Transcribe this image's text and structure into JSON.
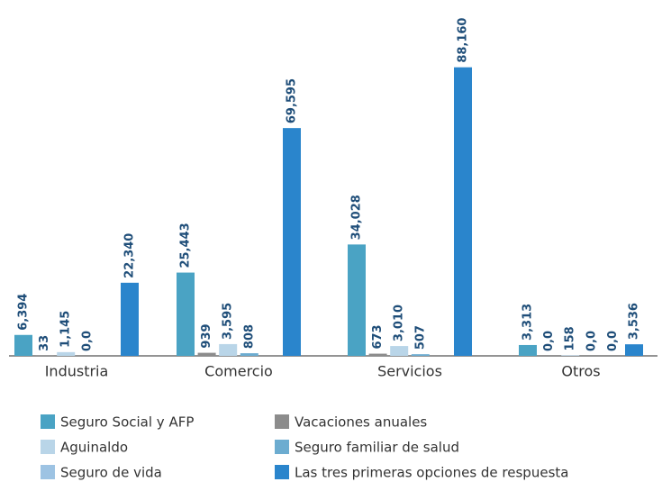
{
  "chart_data": {
    "type": "bar",
    "categories": [
      "Industria",
      "Comercio",
      "Servicios",
      "Otros"
    ],
    "series": [
      {
        "name": "Seguro Social y AFP",
        "color": "#4aa3c4",
        "values": [
          6394,
          25443,
          34028,
          3313
        ],
        "value_labels": [
          "6,394",
          "25,443",
          "34,028",
          "3,313"
        ]
      },
      {
        "name": "Vacaciones anuales",
        "color": "#8c8c8c",
        "values": [
          33,
          939,
          673,
          0
        ],
        "value_labels": [
          "33",
          "939",
          "673",
          "0,0"
        ]
      },
      {
        "name": "Aguinaldo",
        "color": "#b9d5e8",
        "values": [
          1145,
          3595,
          3010,
          158
        ],
        "value_labels": [
          "1,145",
          "3,595",
          "3,010",
          "158"
        ]
      },
      {
        "name": "Seguro familiar de salud",
        "color": "#6cacd0",
        "values": [
          0,
          808,
          507,
          0
        ],
        "value_labels": [
          "0,0",
          "808",
          "507",
          "0,0"
        ]
      },
      {
        "name": "Seguro de vida",
        "color": "#9dc3e3",
        "values": [
          null,
          null,
          null,
          0
        ],
        "value_labels": [
          null,
          null,
          null,
          "0,0"
        ]
      },
      {
        "name": "Las tres primeras opciones de respuesta",
        "color": "#2a85cc",
        "values": [
          22340,
          69595,
          88160,
          3536
        ],
        "value_labels": [
          "22,340",
          "69,595",
          "88,160",
          "3,536"
        ]
      }
    ],
    "ylim": [
      0,
      90000
    ]
  }
}
